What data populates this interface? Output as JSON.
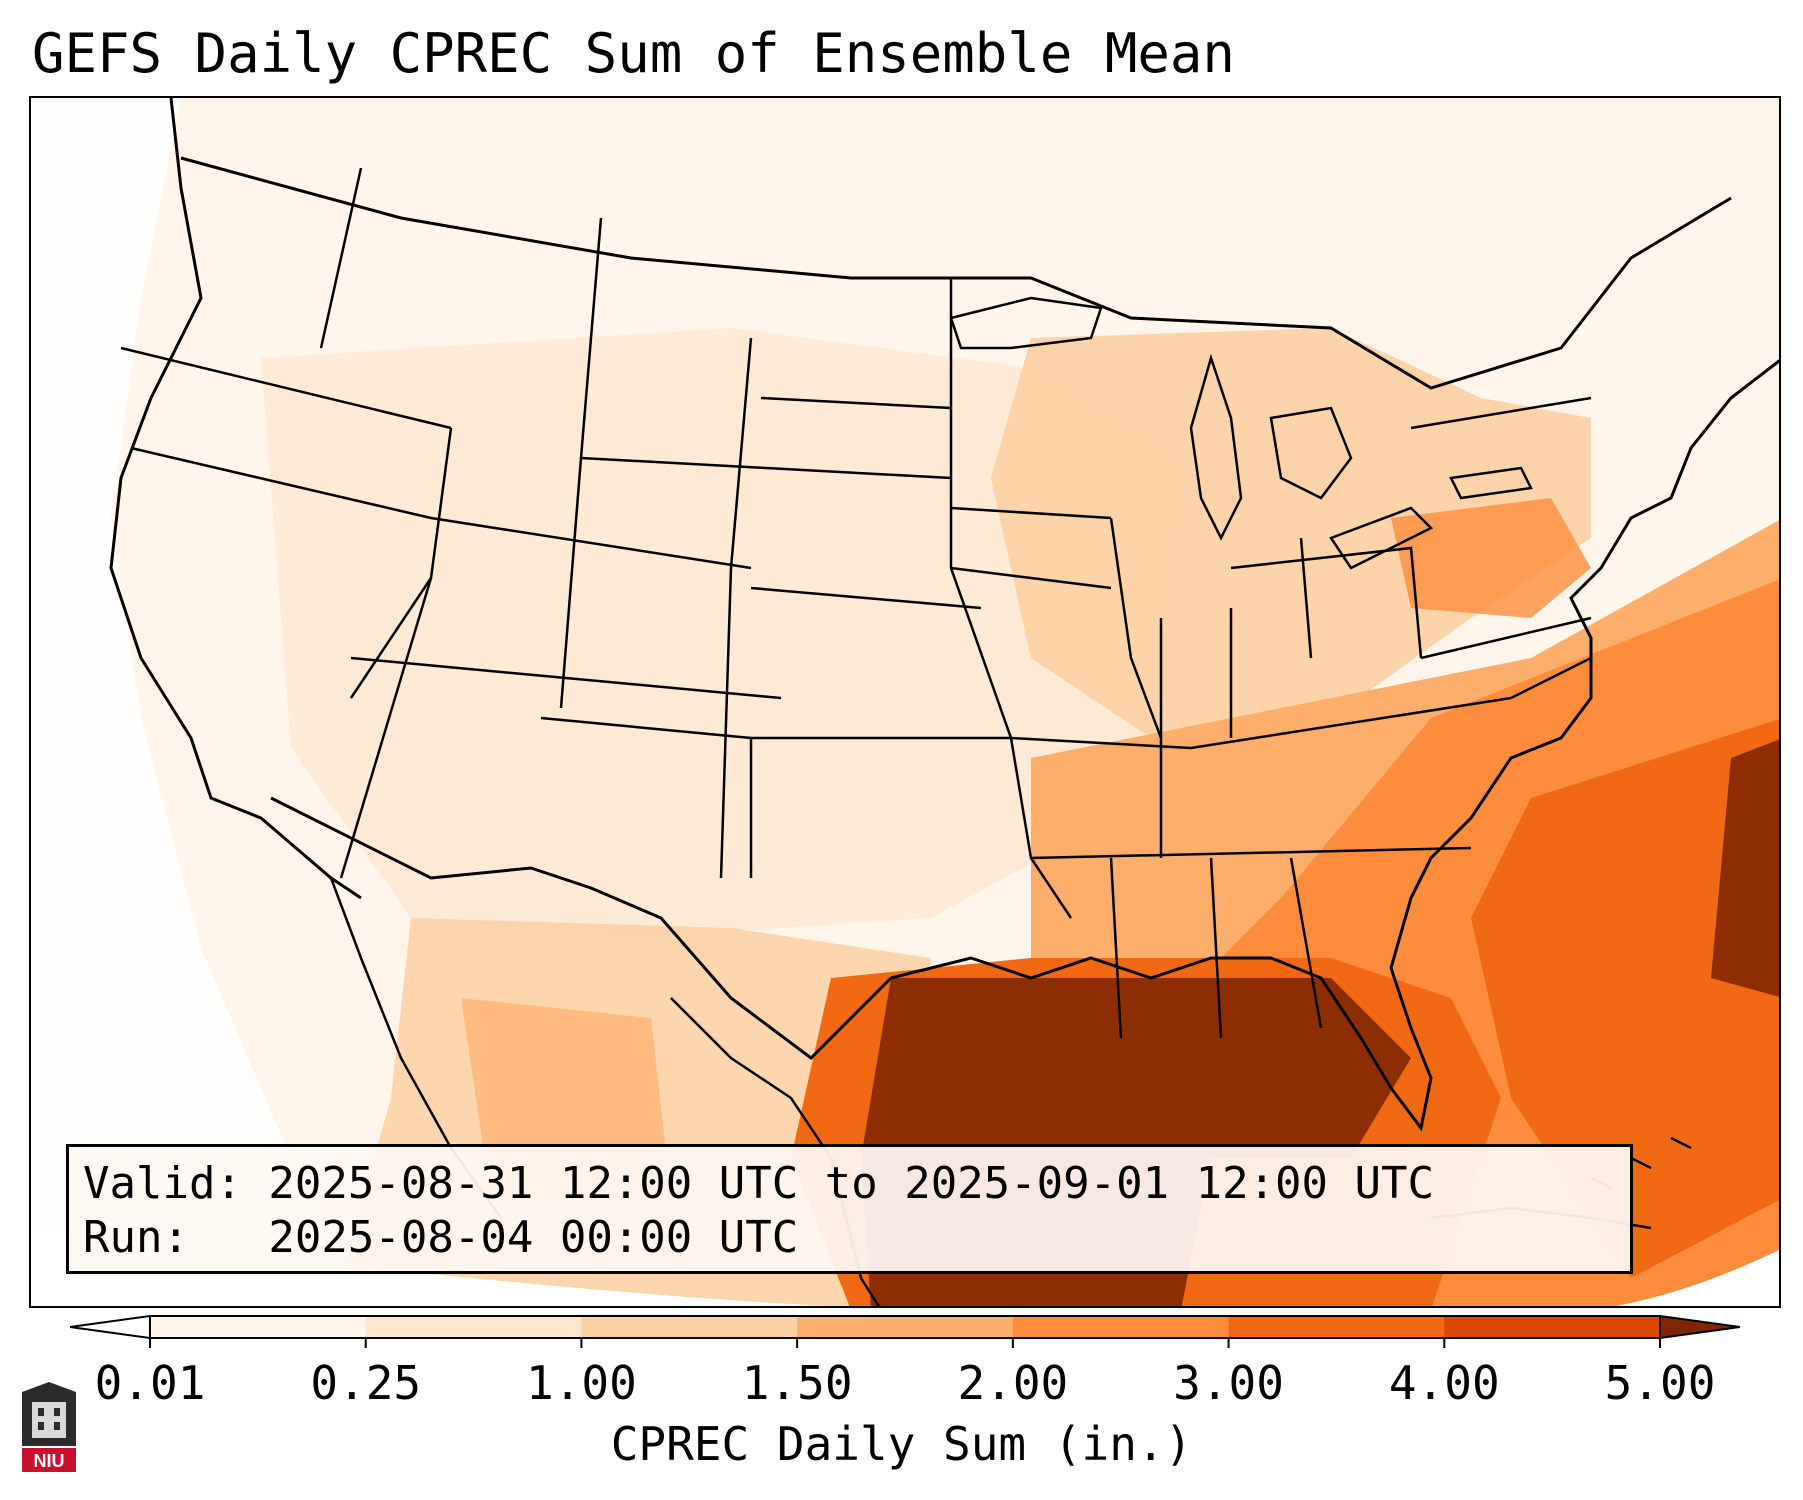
{
  "title": "GEFS Daily CPREC Sum of Ensemble Mean",
  "info": {
    "valid": "Valid: 2025-08-31 12:00 UTC to 2025-09-01 12:00 UTC",
    "run": "Run:   2025-08-04 00:00 UTC"
  },
  "colorbar": {
    "label": "CPREC Daily Sum (in.)",
    "ticks": [
      "0.01",
      "0.25",
      "1.00",
      "1.50",
      "2.00",
      "3.00",
      "4.00",
      "5.00"
    ],
    "colors": [
      "#fff5eb",
      "#fee6ce",
      "#fdd0a2",
      "#fdae6b",
      "#fd8d3c",
      "#f16913",
      "#d94801",
      "#8c2d04"
    ],
    "under_color": "#ffffff",
    "over_color": "#7f2704"
  },
  "map": {
    "projection": "Lambert Conformal",
    "region": "Contiguous United States",
    "features": [
      "state-boundaries",
      "coastlines",
      "great-lakes"
    ]
  },
  "logo": {
    "text": "NIU"
  }
}
